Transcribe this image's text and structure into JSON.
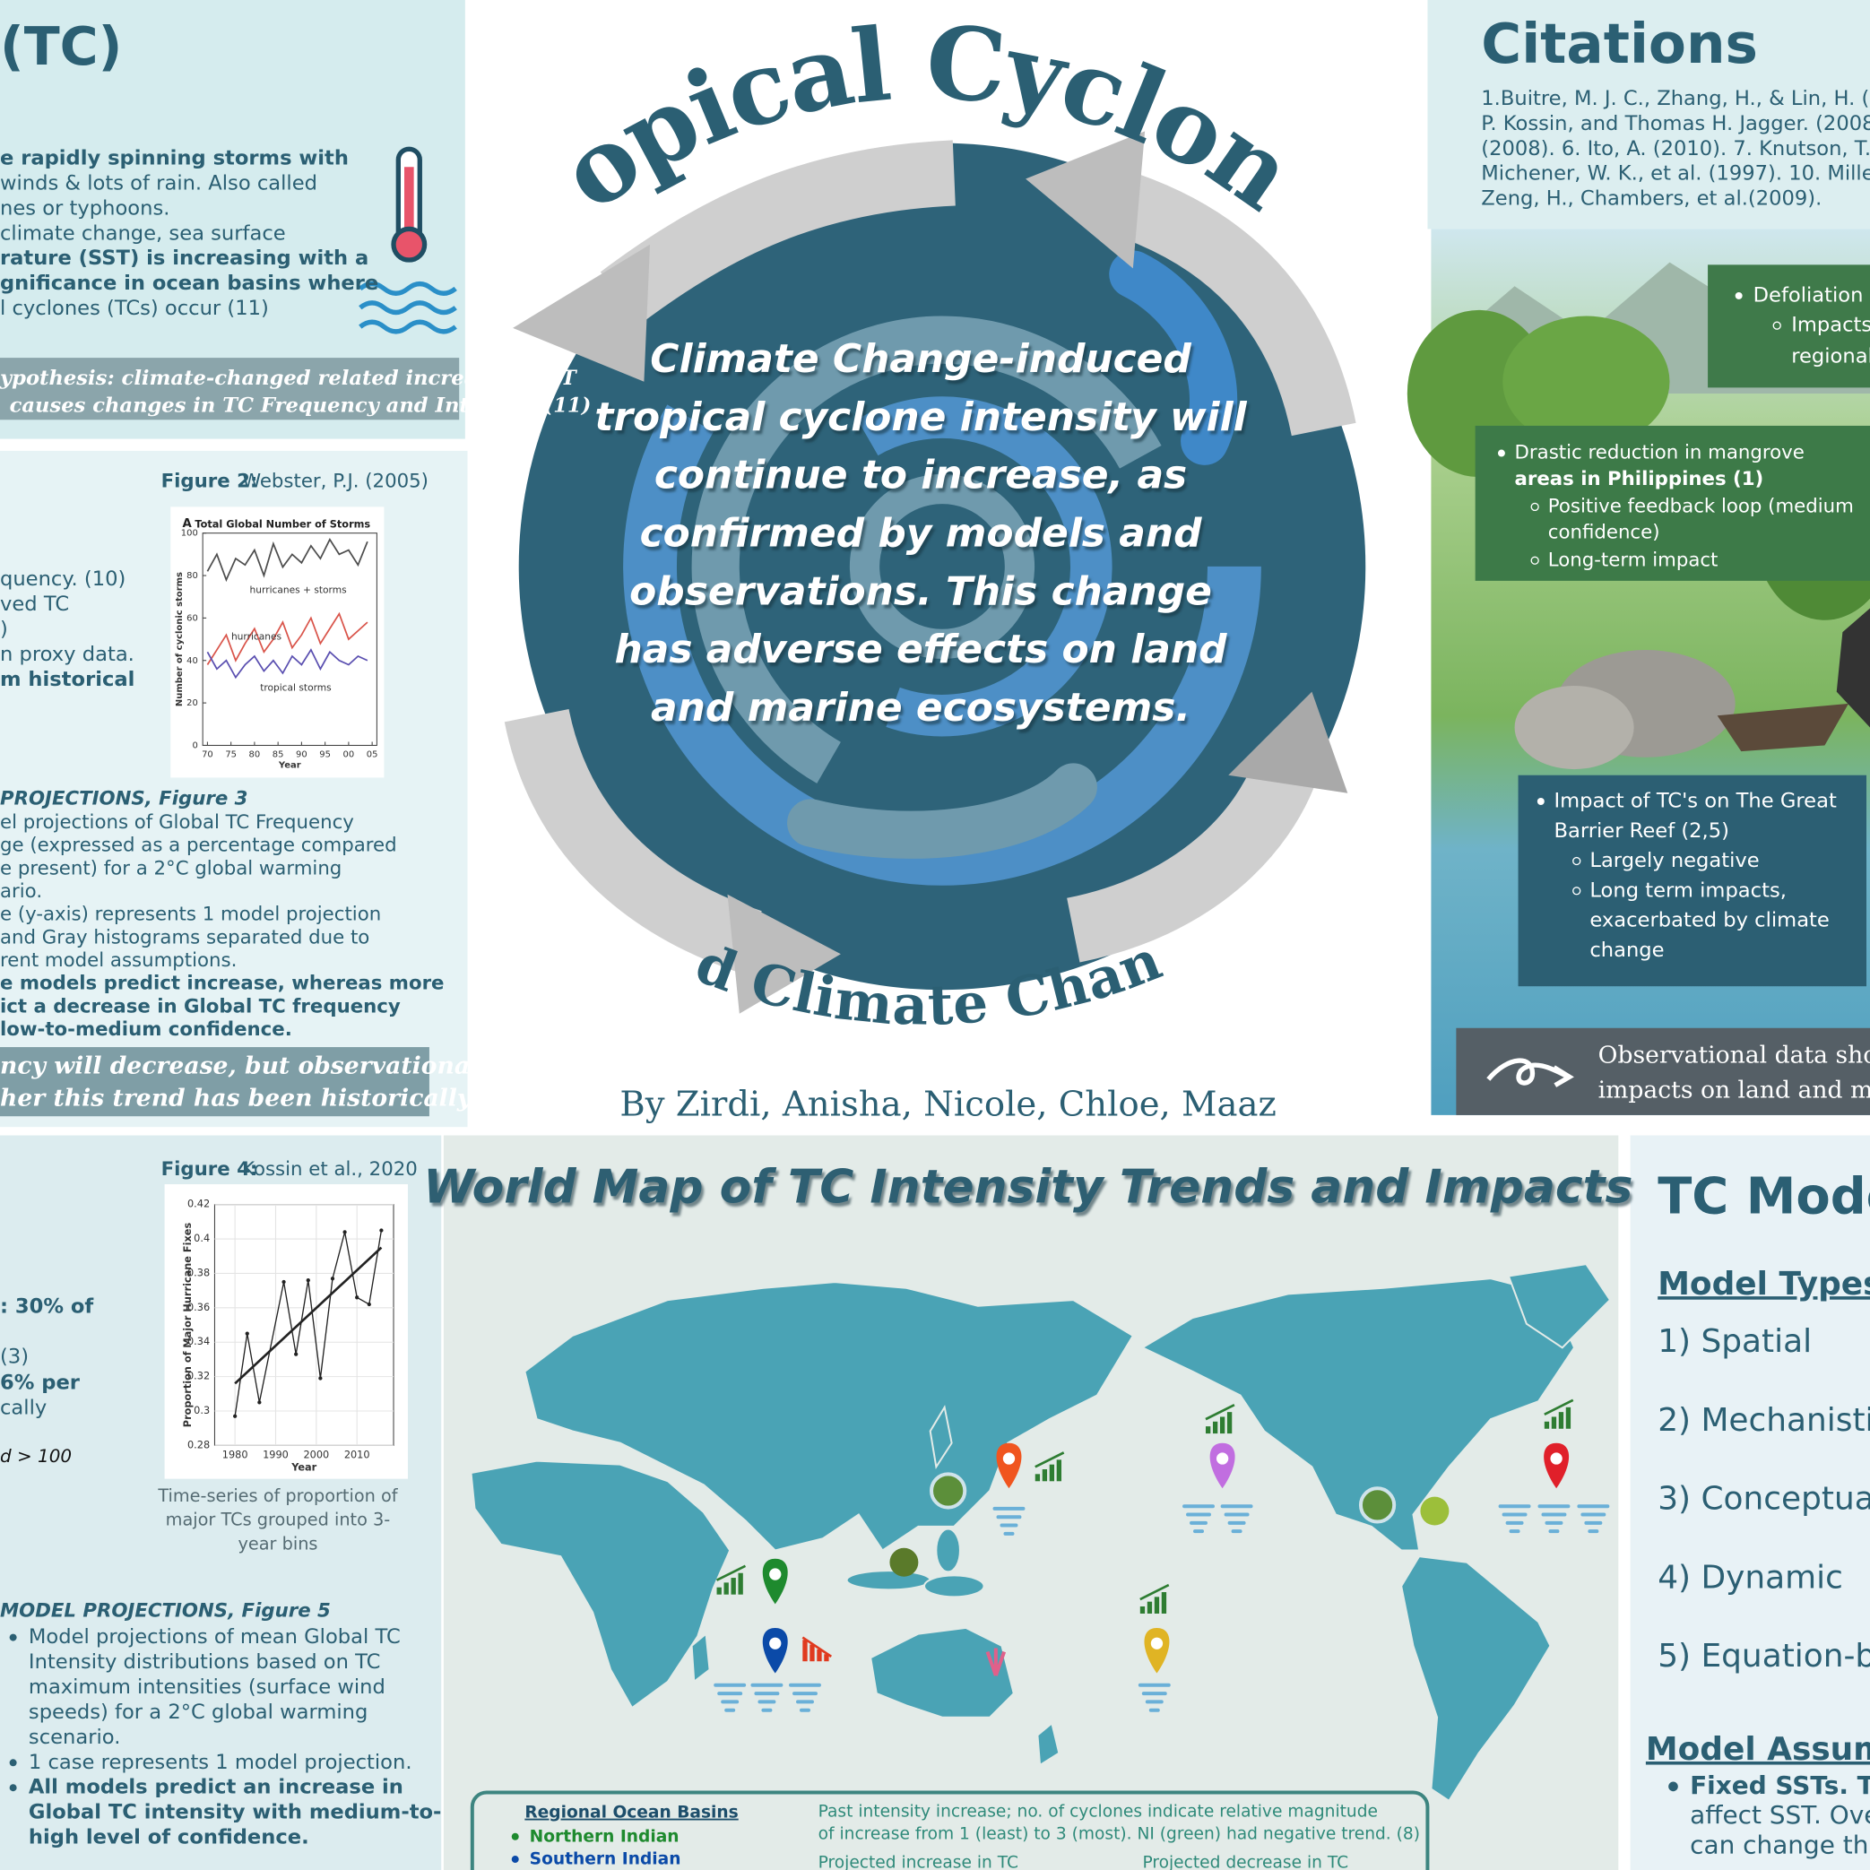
{
  "intro": {
    "title": "(TC)",
    "lines": [
      "e rapidly spinning storms with",
      "winds & lots of rain. Also called",
      "nes or typhoons.",
      "climate change, sea surface",
      "rature (SST) is increasing with a",
      "gnificance in ocean basins where",
      "l cyclones (TCs) occur (11)"
    ],
    "hypothesis": [
      "ypothesis: climate-changed related increasing SST",
      "causes changes in TC Frequency and Intensity (11)"
    ]
  },
  "frequency": {
    "figure_label": "Figure 2:",
    "figure_source": "Webster, P.J. (2005)",
    "figure": {
      "type": "line",
      "panel": "A",
      "title": "Total Global Number of Storms",
      "x_label": "Year",
      "y_label": "Number of cyclonic storms",
      "x": [
        1970,
        1972,
        1974,
        1976,
        1978,
        1980,
        1982,
        1984,
        1986,
        1988,
        1990,
        1992,
        1994,
        1996,
        1998,
        2000,
        2002,
        2004
      ],
      "series": [
        {
          "name": "hurricanes + storms",
          "color": "#4d4d4d",
          "values": [
            82,
            90,
            78,
            88,
            85,
            92,
            80,
            95,
            84,
            90,
            86,
            94,
            88,
            97,
            90,
            92,
            85,
            96
          ]
        },
        {
          "name": "hurricanes",
          "color": "#d9544a",
          "values": [
            38,
            45,
            52,
            40,
            48,
            55,
            44,
            50,
            58,
            46,
            52,
            60,
            48,
            55,
            62,
            50,
            54,
            58
          ]
        },
        {
          "name": "tropical storms",
          "color": "#5a4fb0",
          "values": [
            44,
            36,
            40,
            32,
            38,
            42,
            35,
            40,
            34,
            42,
            38,
            45,
            36,
            44,
            40,
            38,
            42,
            40
          ]
        }
      ],
      "xlim": [
        1969,
        2006
      ],
      "xticks": [
        {
          "value": 1970,
          "label": "70"
        },
        {
          "value": 1975,
          "label": "75"
        },
        {
          "value": 1980,
          "label": "80"
        },
        {
          "value": 1985,
          "label": "85"
        },
        {
          "value": 1990,
          "label": "90"
        },
        {
          "value": 1995,
          "label": "95"
        },
        {
          "value": 2000,
          "label": "00"
        },
        {
          "value": 2005,
          "label": "05"
        }
      ],
      "ylim": [
        0,
        100
      ],
      "yticks": [
        0,
        20,
        40,
        60,
        80,
        100
      ]
    },
    "lines": [
      "quency. (10)",
      "ved TC",
      ")",
      "n proxy data.",
      "m historical"
    ],
    "projections_heading": "PROJECTIONS, Figure 3",
    "projections": [
      "el projections of Global TC Frequency",
      "ge (expressed as a percentage compared",
      "e present) for a 2°C global warming",
      "ario.",
      "e (y-axis) represents 1 model projection",
      "and Gray histograms separated due to",
      "rent model assumptions.",
      "e models predict increase, whereas more",
      "ict a decrease in Global TC frequency",
      "low-to-medium confidence."
    ],
    "conclusion": [
      "ncy will decrease, but observational data",
      "her this trend has been historically true."
    ]
  },
  "intensity": {
    "figure_label": "Figure 4:",
    "figure_source": "Kossin et al., 2020",
    "figure": {
      "type": "line",
      "x_label": "Year",
      "y_label": "Proportion of Major Hurricane Fixes",
      "x": [
        1980,
        1983,
        1986,
        1992,
        1995,
        1998,
        2001,
        2004,
        2007,
        2010,
        2013,
        2016
      ],
      "values": [
        0.297,
        0.345,
        0.305,
        0.375,
        0.333,
        0.376,
        0.319,
        0.377,
        0.404,
        0.366,
        0.362,
        0.405
      ],
      "color": "#222222",
      "trend": {
        "x": [
          1980,
          2016
        ],
        "values": [
          0.316,
          0.395
        ]
      },
      "xlim": [
        1975,
        2019
      ],
      "xticks": [
        1980,
        1990,
        2000,
        2010
      ],
      "ylim": [
        0.28,
        0.42
      ],
      "yticks": [
        0.28,
        0.3,
        0.32,
        0.34,
        0.36,
        0.38,
        0.4,
        0.42
      ],
      "grid": true
    },
    "caption": [
      "Time-series of proportion of",
      "major TCs grouped into 3-",
      "year bins"
    ],
    "lines": [
      ": 30% of",
      "(3)",
      "6% per",
      "cally",
      "d > 100"
    ],
    "projections_heading": "MODEL PROJECTIONS, Figure 5",
    "projections": [
      "Model projections of mean Global TC",
      "Intensity distributions based on TC",
      "maximum intensities (surface wind",
      "speeds) for a 2°C global warming",
      "scenario.",
      "1 case represents 1 model projection.",
      "All models predict an increase in",
      "Global TC intensity with medium-to-",
      "high level of confidence."
    ]
  },
  "poster": {
    "title": "Tropical Cyclones",
    "subtitle": "And Climate Change",
    "authors": "By Zirdi, Anisha, Nicole, Chloe, Maaz",
    "thesis": [
      "Climate Change-induced",
      "tropical cyclone intensity will",
      "continue to increase, as",
      "confirmed by models and",
      "observations. This change",
      "has adverse effects on land",
      "and marine ecosystems."
    ]
  },
  "citations": {
    "title": "Citations",
    "lines": [
      "1.Buitre, M. J. C., Zhang, H., & Lin, H. (2019",
      "P. Kossin, and Thomas H. Jagger. (2008",
      "(2008). 6. Ito, A. (2010). 7. Knutson, T., e",
      "Michener, W. K., et al. (1997). 10. Miller, D",
      "Zeng, H., Chambers, et al.(2009)."
    ]
  },
  "impacts": {
    "defoliation": [
      "Defoliation",
      "Impacts",
      "regional"
    ],
    "mangrove": [
      "Drastic reduction in mangrove",
      "areas in Philippines  (1)",
      "Positive feedback loop (medium",
      "confidence)",
      "Long-term impact"
    ],
    "reef": [
      "Impact of TC's on The Great",
      "Barrier Reef (2,5)",
      "Largely negative",
      "Long term impacts,",
      "exacerbated by climate",
      "change"
    ],
    "observation": [
      "Observational data shows",
      "impacts on land and marin"
    ]
  },
  "map": {
    "title": "World Map of TC Intensity Trends and Impacts",
    "legend": {
      "heading": "Regional Ocean Basins",
      "basins": [
        "Northern Indian",
        "Southern Indian"
      ],
      "past": [
        "Past intensity increase; no. of cyclones indicate relative magnitude",
        "of increase from 1 (least) to 3 (most). NI (green) had negative trend. (8)"
      ],
      "increase": "Projected increase in TC",
      "decrease": "Projected decrease in TC"
    }
  },
  "models": {
    "title": "TC Mode",
    "types_heading": "Model Types",
    "types": [
      "1) Spatial",
      "2) Mechanisti",
      "3) Conceptua",
      "4) Dynamic",
      "5) Equation-b"
    ],
    "assumptions_heading": "Model Assump",
    "assumptions": [
      "Fixed SSTs. Th",
      "affect SST. Ove",
      "can change th"
    ]
  }
}
